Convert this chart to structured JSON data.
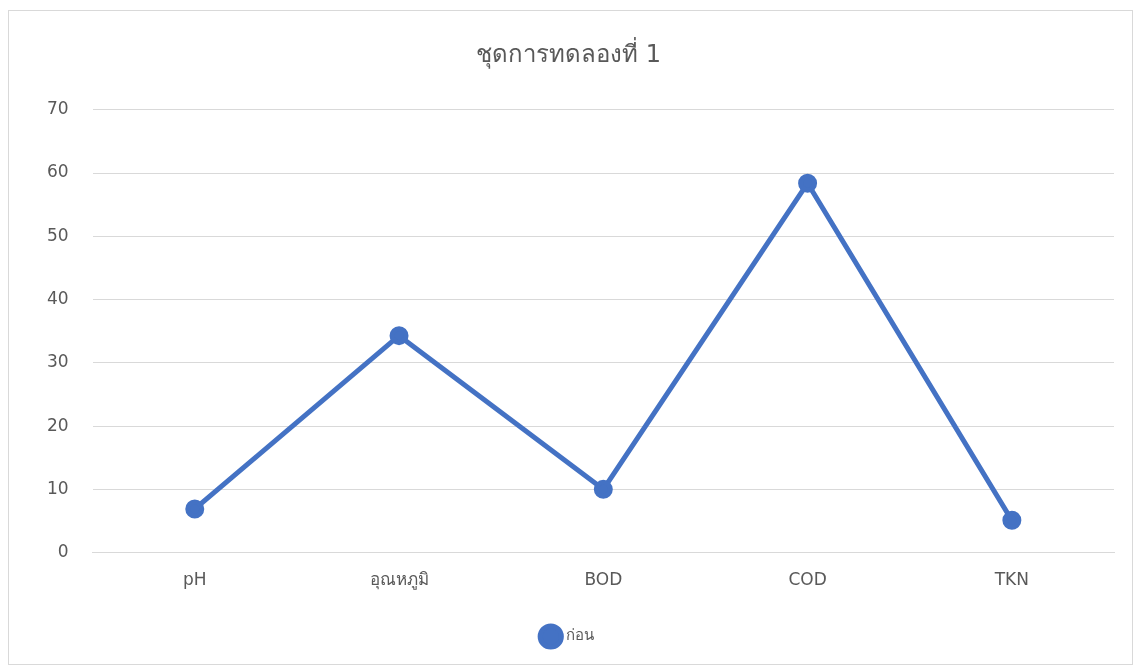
{
  "chart_data": {
    "type": "line",
    "title": "ชุดการทดลองที่ 1",
    "categories": [
      "pH",
      "อุณหภูมิ",
      "BOD",
      "COD",
      "TKN"
    ],
    "series": [
      {
        "name": "ก่อน",
        "color": "#4472c4",
        "values": [
          6.9,
          34.3,
          10.0,
          58.4,
          5.1
        ]
      }
    ],
    "ylim": [
      0,
      70
    ],
    "yticks": [
      0,
      10,
      20,
      30,
      40,
      50,
      60,
      70
    ],
    "grid": "y",
    "legend": "bottom",
    "marker": "circle",
    "line_style": "solid"
  }
}
